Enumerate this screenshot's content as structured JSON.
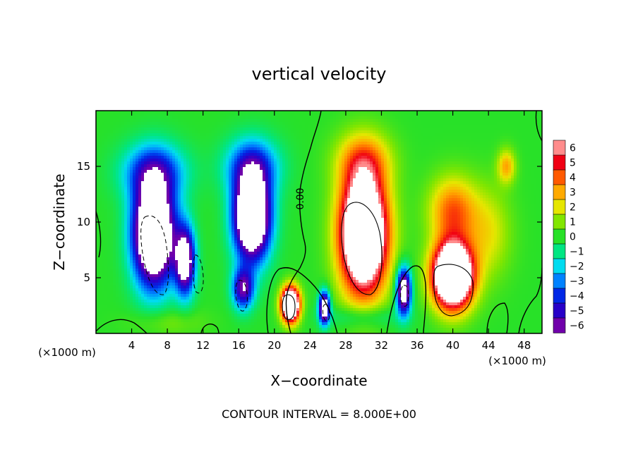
{
  "chart_data": {
    "type": "heatmap",
    "title": "vertical velocity",
    "xlabel": "X−coordinate",
    "ylabel": "Z−coordinate",
    "x_unit_label": "(×1000 m)",
    "z_unit_label": "(×1000 m)",
    "xlim": [
      0,
      50
    ],
    "ylim": [
      0,
      20
    ],
    "x_ticks": [
      4,
      8,
      12,
      16,
      20,
      24,
      28,
      32,
      36,
      40,
      44,
      48
    ],
    "y_ticks": [
      5,
      10,
      15
    ],
    "footer": "CONTOUR INTERVAL = 8.000E+00",
    "contour_label": "0.00",
    "colorbar": {
      "ticks": [
        6,
        5,
        4,
        3,
        2,
        1,
        0,
        -1,
        -2,
        -3,
        -4,
        -5,
        -6
      ],
      "tick_labels": [
        "6",
        "5",
        "4",
        "3",
        "2",
        "1",
        "0",
        "−1",
        "−2",
        "−3",
        "−4",
        "−5",
        "−6"
      ],
      "range": [
        -6,
        6
      ]
    },
    "field_features": [
      {
        "x": 6.5,
        "z": 9.0,
        "amp": -12,
        "sx": 2.3,
        "sz": 4.6
      },
      {
        "x": 10.0,
        "z": 6.5,
        "amp": -8,
        "sx": 1.1,
        "sz": 3.0
      },
      {
        "x": 17.5,
        "z": 10.5,
        "amp": -12,
        "sx": 2.0,
        "sz": 3.8
      },
      {
        "x": 16.5,
        "z": 4.0,
        "amp": -6,
        "sx": 1.2,
        "sz": 1.8
      },
      {
        "x": 6.5,
        "z": 14.5,
        "amp": -4,
        "sx": 3.5,
        "sz": 2.5
      },
      {
        "x": 17.5,
        "z": 15.0,
        "amp": -4,
        "sx": 3.0,
        "sz": 2.5
      },
      {
        "x": 21.8,
        "z": 2.6,
        "amp": 13,
        "sx": 1.0,
        "sz": 1.5
      },
      {
        "x": 25.6,
        "z": 2.3,
        "amp": -9,
        "sx": 0.6,
        "sz": 1.4
      },
      {
        "x": 30.0,
        "z": 9.0,
        "amp": 13,
        "sx": 2.6,
        "sz": 5.2
      },
      {
        "x": 30.0,
        "z": 15.5,
        "amp": 3,
        "sx": 3.0,
        "sz": 2.5
      },
      {
        "x": 34.5,
        "z": 3.8,
        "amp": -9,
        "sx": 0.8,
        "sz": 2.0
      },
      {
        "x": 40.0,
        "z": 5.2,
        "amp": 14,
        "sx": 2.2,
        "sz": 2.8
      },
      {
        "x": 40.0,
        "z": 11.0,
        "amp": 4,
        "sx": 2.6,
        "sz": 3.0
      },
      {
        "x": 46.0,
        "z": 15.0,
        "amp": 3,
        "sx": 1.0,
        "sz": 1.5
      },
      {
        "x": 44.0,
        "z": 9.0,
        "amp": 2,
        "sx": 2.5,
        "sz": 4.0
      },
      {
        "x": 30.0,
        "z": 1.5,
        "amp": -1.5,
        "sx": 4.0,
        "sz": 1.0
      },
      {
        "x": 8.0,
        "z": 1.0,
        "amp": 1,
        "sx": 4.0,
        "sz": 1.2
      }
    ]
  }
}
